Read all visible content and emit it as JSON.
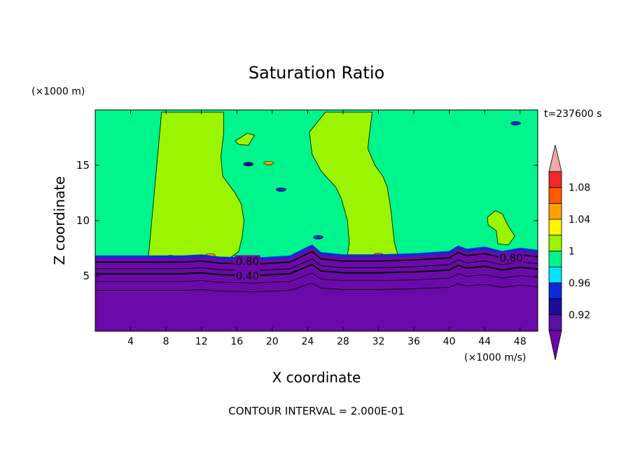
{
  "chart_data": {
    "type": "heatmap",
    "title": "Saturation Ratio",
    "xlabel": "X coordinate",
    "ylabel": "Z coordinate",
    "x_unit": "(×1000 m/s)",
    "y_unit": "(×1000 m)",
    "time_label": "t=237600 s",
    "footer": "CONTOUR INTERVAL = 2.000E-01",
    "xlim": [
      0,
      50
    ],
    "ylim": [
      0,
      20
    ],
    "x_ticks": [
      4,
      8,
      12,
      16,
      20,
      24,
      28,
      32,
      36,
      40,
      44,
      48
    ],
    "y_ticks": [
      5,
      10,
      15
    ],
    "contour_labels": [
      {
        "text": "0.80",
        "x": 17.2,
        "y": 6.3
      },
      {
        "text": "0.40",
        "x": 17.2,
        "y": 5.0
      },
      {
        "text": "0.80",
        "x": 47.0,
        "y": 6.6
      }
    ],
    "colorbar": {
      "labels": [
        "1.08",
        "1.04",
        "1",
        "0.96",
        "0.92"
      ],
      "levels": [
        0.9,
        0.92,
        0.94,
        0.96,
        0.98,
        1.0,
        1.02,
        1.04,
        1.06,
        1.08,
        1.1
      ],
      "colors": [
        "#5a0fa0",
        "#1c0a9c",
        "#0a2bd6",
        "#00e4ff",
        "#00f58c",
        "#9cf500",
        "#fff500",
        "#ffa000",
        "#ff5a00",
        "#f02828"
      ],
      "under_color": "#6a0aa8",
      "over_color": "#f0a8a8"
    },
    "field": {
      "background_color": "#00f58c",
      "dry_layer_color": "#6a0aa8",
      "dry_layer_top": [
        [
          0,
          6.6
        ],
        [
          6,
          6.6
        ],
        [
          10,
          6.6
        ],
        [
          12,
          6.7
        ],
        [
          14,
          6.5
        ],
        [
          18,
          6.4
        ],
        [
          20,
          6.5
        ],
        [
          22,
          6.6
        ],
        [
          23.5,
          7.2
        ],
        [
          24.5,
          7.6
        ],
        [
          25.5,
          6.9
        ],
        [
          28,
          6.7
        ],
        [
          32,
          6.7
        ],
        [
          36,
          6.8
        ],
        [
          40,
          7.0
        ],
        [
          41,
          7.5
        ],
        [
          42,
          7.2
        ],
        [
          44,
          7.4
        ],
        [
          46,
          7.0
        ],
        [
          48,
          7.3
        ],
        [
          50,
          7.1
        ]
      ],
      "supersat_regions": [
        {
          "value": "1.00-1.02",
          "polygon": [
            [
              6,
              6.6
            ],
            [
              7.5,
              19.8
            ],
            [
              14.5,
              19.8
            ],
            [
              14.5,
              17.8
            ],
            [
              14.2,
              15.8
            ],
            [
              14.4,
              14
            ],
            [
              15.8,
              12.5
            ],
            [
              16.5,
              11.5
            ],
            [
              16.8,
              10
            ],
            [
              16.6,
              8.5
            ],
            [
              16.2,
              7.2
            ],
            [
              15,
              6.5
            ],
            [
              12,
              6.6
            ]
          ]
        },
        {
          "value": "1.00-1.02",
          "polygon": [
            [
              26,
              19.8
            ],
            [
              31.3,
              19.8
            ],
            [
              31.0,
              18
            ],
            [
              30.8,
              16.5
            ],
            [
              31.6,
              15
            ],
            [
              32.5,
              14
            ],
            [
              33.0,
              13
            ],
            [
              33.4,
              11
            ],
            [
              33.6,
              9.5
            ],
            [
              33.8,
              8
            ],
            [
              34.2,
              6.9
            ],
            [
              32,
              6.8
            ],
            [
              28.5,
              6.8
            ],
            [
              28.7,
              8
            ],
            [
              28.5,
              10
            ],
            [
              27.8,
              12
            ],
            [
              27.2,
              13
            ],
            [
              25.5,
              14.5
            ],
            [
              24.5,
              16
            ],
            [
              24.2,
              18
            ]
          ]
        },
        {
          "value": "1.00-1.02",
          "polygon": [
            [
              15.8,
              17.2
            ],
            [
              17.2,
              17.9
            ],
            [
              18.0,
              17.7
            ],
            [
              17.3,
              16.8
            ],
            [
              16.2,
              16.9
            ]
          ]
        },
        {
          "value": "1.00-1.02",
          "polygon": [
            [
              44.3,
              10.3
            ],
            [
              45.2,
              10.9
            ],
            [
              46.0,
              10.6
            ],
            [
              46.6,
              9.6
            ],
            [
              47.4,
              8.6
            ],
            [
              46.7,
              7.8
            ],
            [
              45.5,
              7.9
            ],
            [
              45.3,
              9.1
            ],
            [
              44.4,
              9.6
            ]
          ]
        }
      ],
      "small_patches": [
        {
          "value": "1.06-1.08",
          "x": 8.5,
          "y": 6.7
        },
        {
          "value": "1.04-1.06",
          "x": 13.0,
          "y": 6.85
        },
        {
          "value": "1.06-1.08",
          "x": 32.0,
          "y": 6.9
        },
        {
          "value": "1.04-1.06",
          "x": 19.6,
          "y": 15.2
        },
        {
          "value": "0.94-0.96",
          "x": 21.0,
          "y": 12.8
        },
        {
          "value": "0.92-0.94",
          "x": 17.3,
          "y": 15.1
        },
        {
          "value": "0.94-0.96",
          "x": 25.2,
          "y": 8.5
        },
        {
          "value": "0.94-0.96",
          "x": 47.5,
          "y": 18.8
        }
      ]
    }
  }
}
